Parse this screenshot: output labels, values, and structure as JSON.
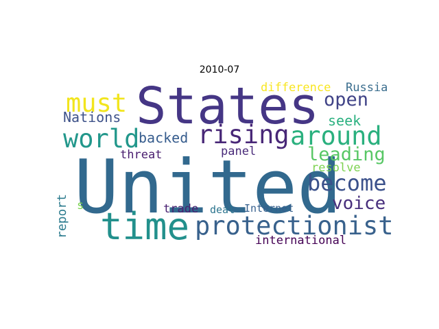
{
  "title": "2010-07",
  "colors": {
    "background": "#ffffff",
    "palette": "viridis"
  },
  "words": {
    "united": {
      "text": "United",
      "color": "#32698e"
    },
    "states": {
      "text": "States",
      "color": "#453685"
    },
    "time": {
      "text": "time",
      "color": "#22908c"
    },
    "protectionist": {
      "text": "protectionist",
      "color": "#38618c"
    },
    "must": {
      "text": "must",
      "color": "#f2e51d"
    },
    "world": {
      "text": "world",
      "color": "#22978b"
    },
    "rising": {
      "text": "rising",
      "color": "#482777"
    },
    "around": {
      "text": "around",
      "color": "#2ab07e"
    },
    "become": {
      "text": "become",
      "color": "#3b518b"
    },
    "leading": {
      "text": "leading",
      "color": "#58c765"
    },
    "open": {
      "text": "open",
      "color": "#404387"
    },
    "voice": {
      "text": "voice",
      "color": "#472e7c"
    },
    "nations": {
      "text": "Nations",
      "color": "#3e5289"
    },
    "backed": {
      "text": "backed",
      "color": "#365c8d"
    },
    "seek": {
      "text": "seek",
      "color": "#2ab07f"
    },
    "panel": {
      "text": "panel",
      "color": "#482979"
    },
    "threat": {
      "text": "threat",
      "color": "#481c6e"
    },
    "resolve": {
      "text": "resolve",
      "color": "#7cd250"
    },
    "difference": {
      "text": "difference",
      "color": "#f8e621"
    },
    "russia": {
      "text": "Russia",
      "color": "#3b6e8e"
    },
    "report": {
      "text": "report",
      "color": "#2c7b8e"
    },
    "s": {
      "text": "s",
      "color": "#7ad151"
    },
    "trade": {
      "text": "trade",
      "color": "#482071"
    },
    "deal": {
      "text": "deal",
      "color": "#2b748e"
    },
    "internet": {
      "text": "Internet",
      "color": "#355f8d"
    },
    "international": {
      "text": "international",
      "color": "#440154"
    }
  }
}
